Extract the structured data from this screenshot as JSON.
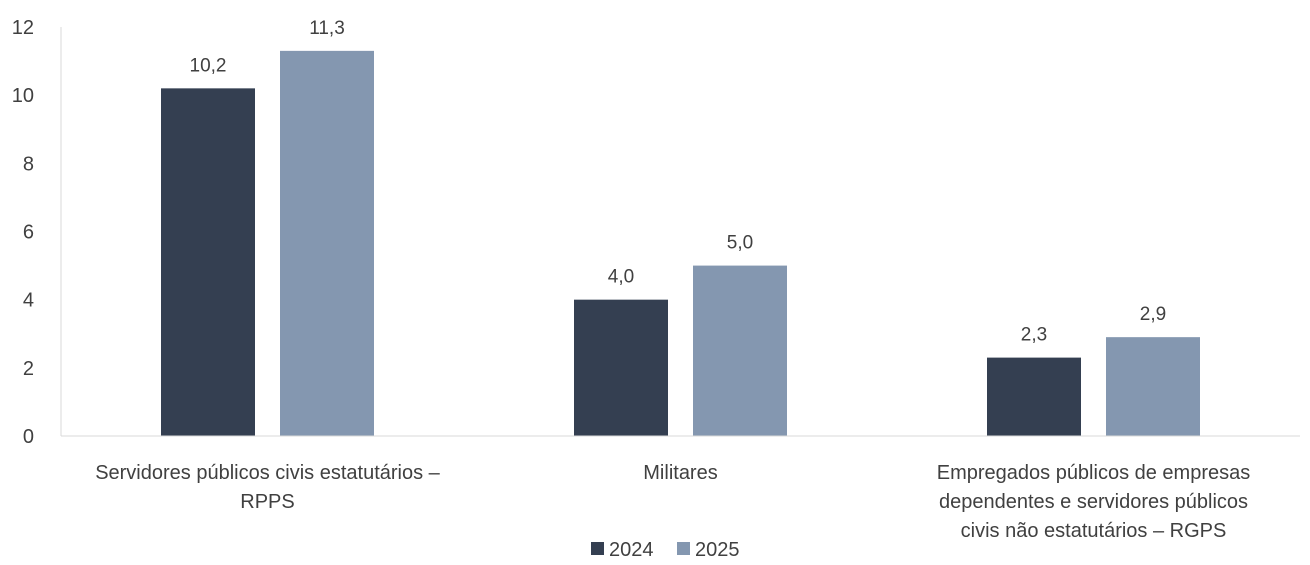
{
  "chart_data": {
    "type": "bar",
    "categories": [
      "Servidores públicos civis estatutários – RPPS",
      "Militares",
      "Empregados públicos de empresas dependentes e servidores públicos civis não estatutários – RGPS"
    ],
    "category_lines": [
      [
        "Servidores públicos civis estatutários –",
        "RPPS"
      ],
      [
        "Militares"
      ],
      [
        "Empregados públicos de empresas",
        "dependentes e servidores públicos",
        "civis não estatutários – RGPS"
      ]
    ],
    "series": [
      {
        "name": "2024",
        "values": [
          10.2,
          4.0,
          2.3
        ],
        "labels": [
          "10,2",
          "4,0",
          "2,3"
        ],
        "color": "#343f51"
      },
      {
        "name": "2025",
        "values": [
          11.3,
          5.0,
          2.9
        ],
        "labels": [
          "11,3",
          "5,0",
          "2,9"
        ],
        "color": "#8497b0"
      }
    ],
    "ylim": [
      0,
      12
    ],
    "yticks": [
      0,
      2,
      4,
      6,
      8,
      10,
      12
    ],
    "grid": false,
    "legend_position": "bottom"
  }
}
